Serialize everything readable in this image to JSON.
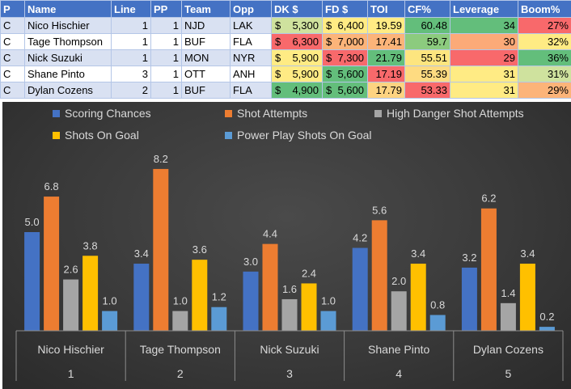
{
  "table": {
    "headers": [
      "P",
      "Name",
      "Line",
      "PP",
      "Team",
      "Opp",
      "DK $",
      "FD $",
      "TOI",
      "CF%",
      "Leverage",
      "Boom%"
    ],
    "rows": [
      {
        "pos": "C",
        "name": "Nico Hischier",
        "line": "1",
        "pp": "1",
        "team": "NJD",
        "opp": "LAK",
        "dk": "5,300",
        "fd": "6,400",
        "toi": "19.59",
        "cf": "60.48",
        "leverage": "34",
        "boom": "27%"
      },
      {
        "pos": "C",
        "name": "Tage Thompson",
        "line": "1",
        "pp": "1",
        "team": "BUF",
        "opp": "FLA",
        "dk": "6,300",
        "fd": "7,000",
        "toi": "17.41",
        "cf": "59.7",
        "leverage": "30",
        "boom": "32%"
      },
      {
        "pos": "C",
        "name": "Nick Suzuki",
        "line": "1",
        "pp": "1",
        "team": "MON",
        "opp": "NYR",
        "dk": "5,900",
        "fd": "7,300",
        "toi": "21.79",
        "cf": "55.51",
        "leverage": "29",
        "boom": "36%"
      },
      {
        "pos": "C",
        "name": "Shane Pinto",
        "line": "3",
        "pp": "1",
        "team": "OTT",
        "opp": "ANH",
        "dk": "5,900",
        "fd": "5,600",
        "toi": "17.19",
        "cf": "55.39",
        "leverage": "31",
        "boom": "31%"
      },
      {
        "pos": "C",
        "name": "Dylan Cozens",
        "line": "2",
        "pp": "1",
        "team": "BUF",
        "opp": "FLA",
        "dk": "4,900",
        "fd": "5,600",
        "toi": "17.79",
        "cf": "53.33",
        "leverage": "31",
        "boom": "29%"
      }
    ],
    "currency_symbol": "$",
    "cell_colors": {
      "dk": [
        "#cfe29e",
        "#f8696b",
        "#ffeb84",
        "#ffeb84",
        "#63be7b"
      ],
      "fd": [
        "#ffeb84",
        "#fcb479",
        "#f8696b",
        "#63be7b",
        "#63be7b"
      ],
      "toi": [
        "#ffeb84",
        "#fcb479",
        "#63be7b",
        "#f8696b",
        "#fdd381"
      ],
      "cf": [
        "#63be7b",
        "#8ccb7e",
        "#fde57f",
        "#fedb81",
        "#f8696b"
      ],
      "leverage": [
        "#63be7b",
        "#fcaa78",
        "#f8696b",
        "#ffeb84",
        "#ffeb84"
      ],
      "boom": [
        "#f8696b",
        "#ffeb84",
        "#63be7b",
        "#cfe29e",
        "#fcb479"
      ]
    }
  },
  "chart_data": {
    "type": "bar",
    "categories": [
      "Nico Hischier",
      "Tage Thompson",
      "Nick Suzuki",
      "Shane Pinto",
      "Dylan Cozens"
    ],
    "group_labels": [
      "1",
      "2",
      "3",
      "4",
      "5"
    ],
    "series": [
      {
        "name": "Scoring Chances",
        "color": "#4472c4",
        "values": [
          5.0,
          3.4,
          3.0,
          4.2,
          3.2
        ]
      },
      {
        "name": "Shot Attempts",
        "color": "#ed7d31",
        "values": [
          6.8,
          8.2,
          4.4,
          5.6,
          6.2
        ]
      },
      {
        "name": "High Danger Shot Attempts",
        "color": "#a5a5a5",
        "values": [
          2.6,
          1.0,
          1.6,
          2.0,
          1.4
        ]
      },
      {
        "name": "Shots On Goal",
        "color": "#ffc000",
        "values": [
          3.8,
          3.6,
          2.4,
          3.4,
          3.4
        ]
      },
      {
        "name": "Power Play Shots On Goal",
        "color": "#5b9bd5",
        "values": [
          1.0,
          1.2,
          1.0,
          0.8,
          0.2
        ]
      }
    ],
    "ylim": [
      0,
      9
    ],
    "value_format": "0.0",
    "title": "",
    "xlabel": "",
    "ylabel": "",
    "grid": false,
    "legend_position": "top"
  }
}
